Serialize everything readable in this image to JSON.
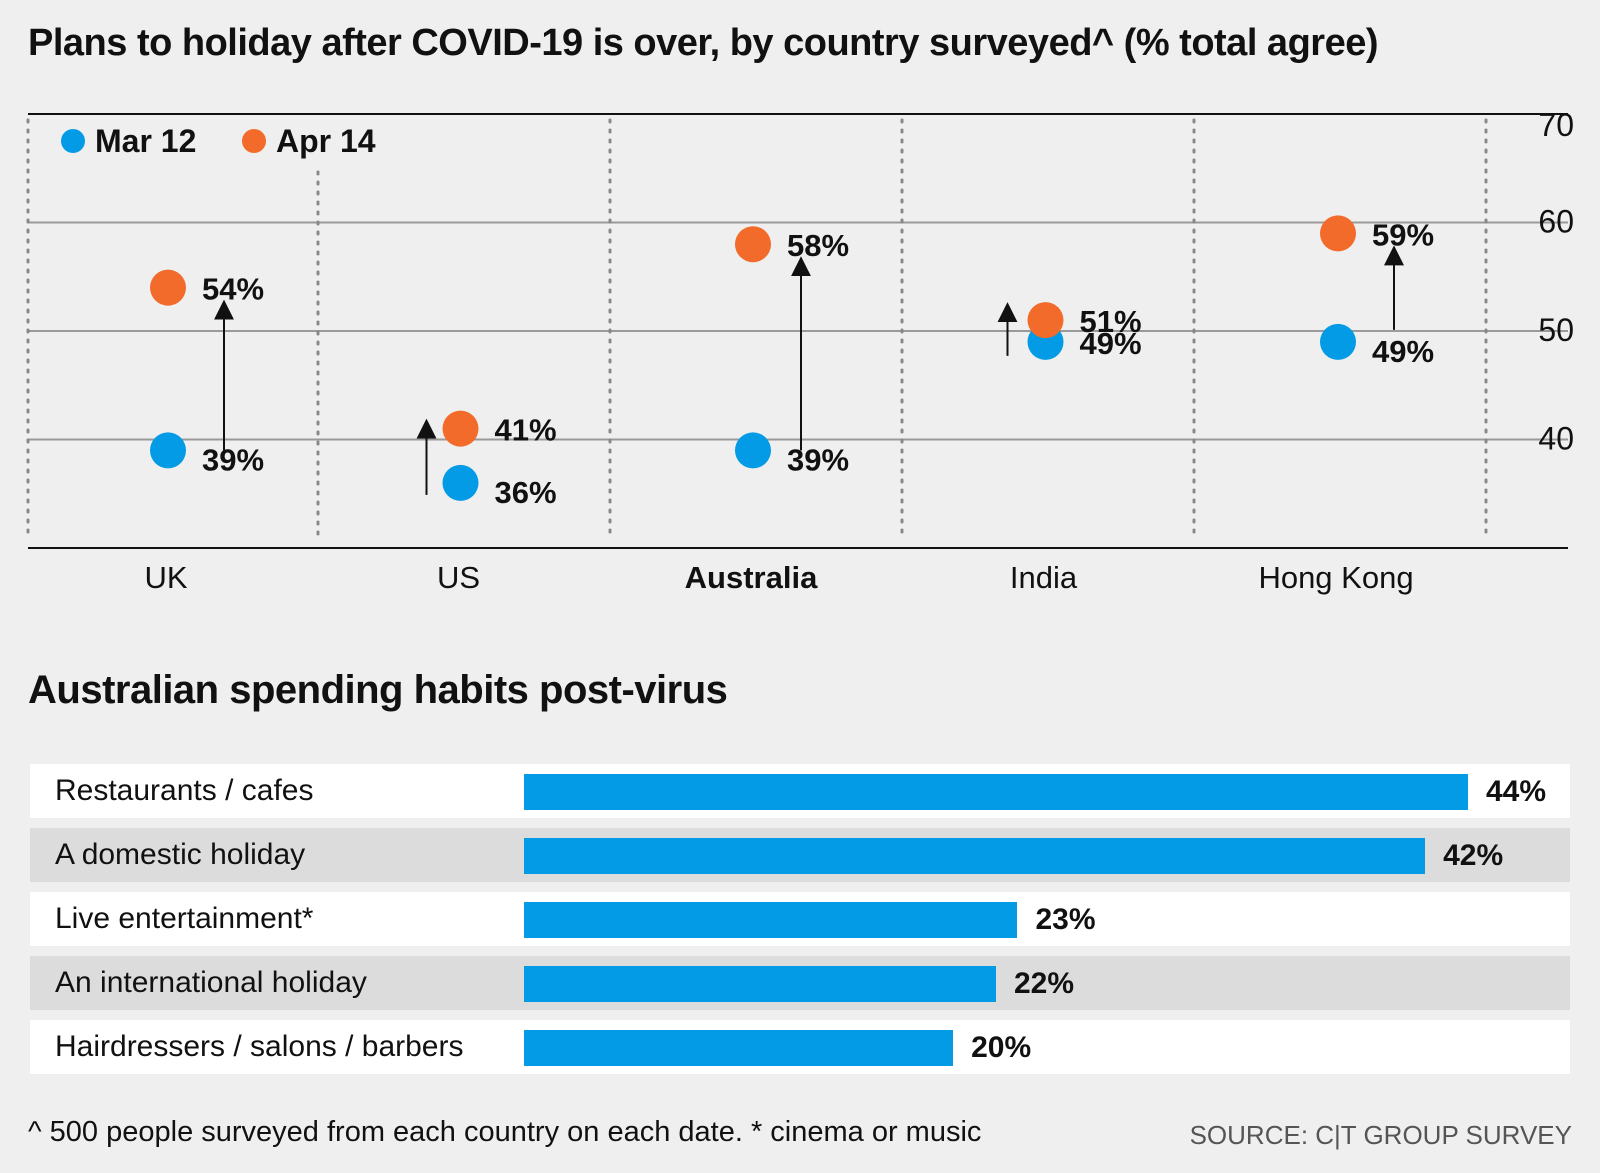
{
  "chart_data": [
    {
      "type": "scatter",
      "title": "Plans to holiday after COVID-19 is over, by country surveyed^ (% total agree)",
      "categories": [
        "UK",
        "US",
        "Australia",
        "India",
        "Hong Kong"
      ],
      "series": [
        {
          "name": "Mar 12",
          "color": "#039be5",
          "values": [
            39,
            36,
            39,
            49,
            49
          ]
        },
        {
          "name": "Apr 14",
          "color": "#f26b2a",
          "values": [
            54,
            41,
            58,
            51,
            59
          ]
        }
      ],
      "value_labels": {
        "Mar 12": [
          "39%",
          "36%",
          "39%",
          "49%",
          "49%"
        ],
        "Apr 14": [
          "54%",
          "41%",
          "58%",
          "51%",
          "59%"
        ]
      },
      "ylim": [
        30,
        70
      ],
      "yticks": [
        70,
        60,
        50,
        40
      ],
      "bold_category": "Australia",
      "grid": true,
      "legend": "top-left"
    },
    {
      "type": "bar",
      "title": "Australian spending habits post-virus",
      "categories": [
        "Restaurants / cafes",
        "A domestic holiday",
        "Live entertainment*",
        "An international holiday",
        "Hairdressers / salons / barbers"
      ],
      "values": [
        44,
        42,
        23,
        22,
        20
      ],
      "value_labels": [
        "44%",
        "42%",
        "23%",
        "22%",
        "20%"
      ],
      "bar_color": "#039be5"
    }
  ],
  "footnote": "^ 500 people surveyed from each country on each date.   * cinema or music",
  "source": "SOURCE: C|T GROUP SURVEY"
}
